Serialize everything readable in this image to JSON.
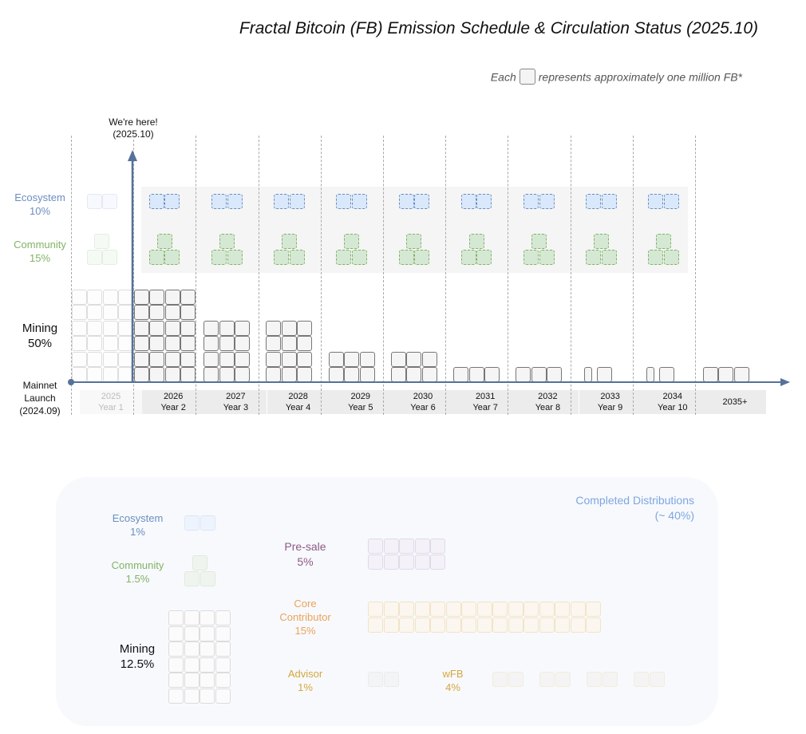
{
  "title": "Fractal Bitcoin (FB) Emission Schedule & Circulation Status (2025.10)",
  "legend": {
    "prefix": "Each",
    "suffix": "represents approximately one million FB*",
    "unit_icon": "block-square-icon"
  },
  "marker": {
    "line1": "We're here!",
    "line2": "(2025.10)"
  },
  "origin": {
    "line1": "Mainnet",
    "line2": "Launch",
    "line3": "(2024.09)"
  },
  "categories": {
    "ecosystem": {
      "name": "Ecosystem",
      "pct": "10%",
      "color": "#6c8ebf"
    },
    "community": {
      "name": "Community",
      "pct": "15%",
      "color": "#82b366"
    },
    "mining": {
      "name": "Mining",
      "pct": "50%",
      "color": "#111111"
    }
  },
  "years": [
    {
      "year": "2025",
      "label": "Year 1",
      "mining_cols": 4,
      "mining_rows": 6,
      "past": true
    },
    {
      "year": "2026",
      "label": "Year 2",
      "mining_cols": 4,
      "mining_rows": 6,
      "past": false
    },
    {
      "year": "2027",
      "label": "Year 3",
      "mining_cols": 3,
      "mining_rows": 4,
      "past": false
    },
    {
      "year": "2028",
      "label": "Year 4",
      "mining_cols": 3,
      "mining_rows": 4,
      "past": false
    },
    {
      "year": "2029",
      "label": "Year 5",
      "mining_cols": 3,
      "mining_rows": 2,
      "past": false
    },
    {
      "year": "2030",
      "label": "Year 6",
      "mining_cols": 3,
      "mining_rows": 2,
      "past": false
    },
    {
      "year": "2031",
      "label": "Year 7",
      "mining_cols": 3,
      "mining_rows": 1,
      "past": false
    },
    {
      "year": "2032",
      "label": "Year 8",
      "mining_cols": 3,
      "mining_rows": 1,
      "past": false
    },
    {
      "year": "2033",
      "label": "Year 9",
      "mining_cols": 1.5,
      "mining_rows": 1,
      "past": false
    },
    {
      "year": "2034",
      "label": "Year 10",
      "mining_cols": 1.5,
      "mining_rows": 1,
      "past": false
    },
    {
      "year": "2035+",
      "label": "",
      "mining_cols": 3,
      "mining_rows": 1,
      "past": false
    }
  ],
  "completed": {
    "title": "Completed Distributions",
    "subtitle": "(~ 40%)",
    "items": {
      "ecosystem": {
        "name": "Ecosystem",
        "pct": "1%",
        "blocks": 2,
        "color": "#6c8ebf"
      },
      "community": {
        "name": "Community",
        "pct": "1.5%",
        "blocks": 3,
        "color": "#82b366"
      },
      "mining": {
        "name": "Mining",
        "pct": "12.5%",
        "blocks": 24,
        "color": "#111111"
      },
      "presale": {
        "name": "Pre-sale",
        "pct": "5%",
        "blocks": 10,
        "color": "#8e5a85"
      },
      "core": {
        "name1": "Core",
        "name2": "Contributor",
        "pct": "15%",
        "blocks": 30,
        "color": "#eda35a"
      },
      "advisor": {
        "name": "Advisor",
        "pct": "1%",
        "blocks": 2,
        "color": "#d6a73e"
      },
      "wfb": {
        "name": "wFB",
        "pct": "4%",
        "blocks": 8,
        "color": "#d6a73e"
      }
    },
    "title_color": "#7ea6e0"
  }
}
